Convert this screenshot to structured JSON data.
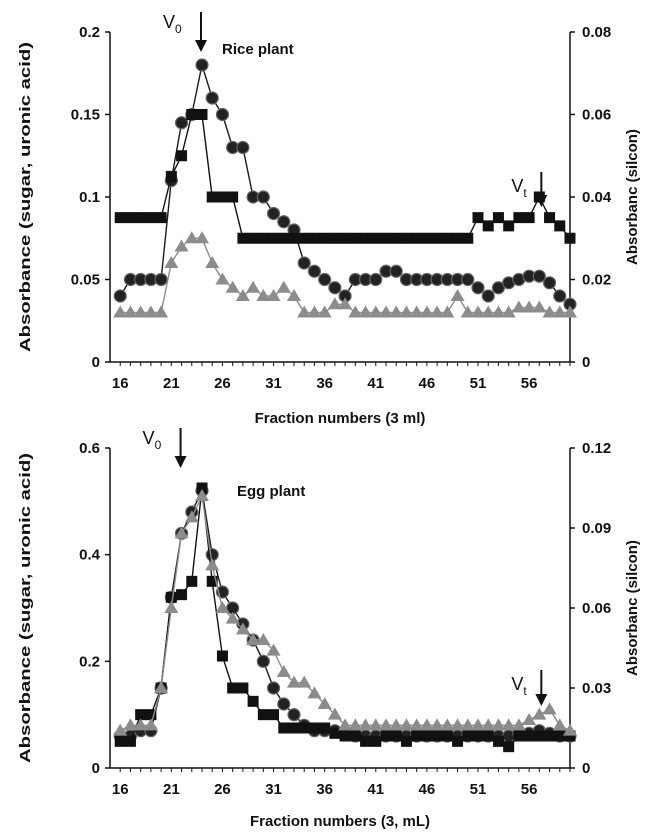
{
  "chart_data": [
    {
      "type": "line",
      "title": "Rice plant",
      "xlabel": "Fraction numbers (3 ml)",
      "ylabel": "Absorbance (sugar, uronic acid)",
      "y2label": "Absorbanc (silcon)",
      "xlim": [
        15,
        60
      ],
      "ylim": [
        0,
        0.2
      ],
      "y2lim": [
        0,
        0.08
      ],
      "xticks": [
        "16",
        "21",
        "26",
        "31",
        "36",
        "41",
        "46",
        "51",
        "56"
      ],
      "yticks": [
        "0",
        "0.05",
        "0.1",
        "0.15",
        "0.2"
      ],
      "y2ticks": [
        "0",
        "0.02",
        "0.04",
        "0.06",
        "0.08"
      ],
      "grid": false,
      "annotations": [
        {
          "label": "V",
          "sub": "0",
          "x": 24
        },
        {
          "label": "V",
          "sub": "t",
          "x": 57
        }
      ],
      "series": [
        {
          "marker": "circle",
          "axis": "left",
          "color": "#1a1a1a",
          "x": [
            16,
            17,
            18,
            19,
            20,
            21,
            22,
            23,
            24,
            25,
            26,
            27,
            28,
            29,
            30,
            31,
            32,
            33,
            34,
            35,
            36,
            37,
            38,
            39,
            40,
            41,
            42,
            43,
            44,
            45,
            46,
            47,
            48,
            49,
            50,
            51,
            52,
            53,
            54,
            55,
            56,
            57,
            58,
            59,
            60
          ],
          "y": [
            0.04,
            0.05,
            0.05,
            0.05,
            0.05,
            0.11,
            0.145,
            0.15,
            0.18,
            0.16,
            0.15,
            0.13,
            0.13,
            0.1,
            0.1,
            0.09,
            0.085,
            0.08,
            0.06,
            0.055,
            0.05,
            0.045,
            0.04,
            0.05,
            0.05,
            0.05,
            0.055,
            0.055,
            0.05,
            0.05,
            0.05,
            0.05,
            0.05,
            0.05,
            0.05,
            0.045,
            0.04,
            0.045,
            0.048,
            0.05,
            0.052,
            0.052,
            0.048,
            0.04,
            0.035
          ]
        },
        {
          "marker": "square",
          "axis": "right",
          "color": "#111111",
          "x": [
            16,
            17,
            18,
            19,
            20,
            21,
            22,
            23,
            24,
            25,
            26,
            27,
            28,
            29,
            30,
            31,
            32,
            33,
            34,
            35,
            36,
            37,
            38,
            39,
            40,
            41,
            42,
            43,
            44,
            45,
            46,
            47,
            48,
            49,
            50,
            51,
            52,
            53,
            54,
            55,
            56,
            57,
            58,
            59,
            60
          ],
          "y": [
            0.035,
            0.035,
            0.035,
            0.035,
            0.035,
            0.045,
            0.05,
            0.06,
            0.06,
            0.04,
            0.04,
            0.04,
            0.03,
            0.03,
            0.03,
            0.03,
            0.03,
            0.03,
            0.03,
            0.03,
            0.03,
            0.03,
            0.03,
            0.03,
            0.03,
            0.03,
            0.03,
            0.03,
            0.03,
            0.03,
            0.03,
            0.03,
            0.03,
            0.03,
            0.03,
            0.035,
            0.033,
            0.035,
            0.033,
            0.035,
            0.035,
            0.04,
            0.035,
            0.033,
            0.03
          ]
        },
        {
          "marker": "triangle",
          "axis": "left",
          "color": "#8c8c8c",
          "x": [
            16,
            17,
            18,
            19,
            20,
            21,
            22,
            23,
            24,
            25,
            26,
            27,
            28,
            29,
            30,
            31,
            32,
            33,
            34,
            35,
            36,
            37,
            38,
            39,
            40,
            41,
            42,
            43,
            44,
            45,
            46,
            47,
            48,
            49,
            50,
            51,
            52,
            53,
            54,
            55,
            56,
            57,
            58,
            59,
            60
          ],
          "y": [
            0.03,
            0.03,
            0.03,
            0.03,
            0.03,
            0.06,
            0.07,
            0.075,
            0.075,
            0.06,
            0.05,
            0.045,
            0.04,
            0.045,
            0.04,
            0.04,
            0.045,
            0.04,
            0.03,
            0.03,
            0.03,
            0.035,
            0.035,
            0.03,
            0.03,
            0.03,
            0.03,
            0.03,
            0.03,
            0.03,
            0.03,
            0.03,
            0.03,
            0.04,
            0.03,
            0.03,
            0.03,
            0.03,
            0.03,
            0.033,
            0.033,
            0.033,
            0.03,
            0.03,
            0.03
          ]
        }
      ]
    },
    {
      "type": "line",
      "title": "Egg plant",
      "xlabel": "Fraction numbers (3, mL)",
      "ylabel": "Absorbance (sugar, uronic acid)",
      "y2label": "Absorbanc (silcon)",
      "xlim": [
        15,
        60
      ],
      "ylim": [
        0,
        0.6
      ],
      "y2lim": [
        0,
        0.12
      ],
      "xticks": [
        "16",
        "21",
        "26",
        "31",
        "36",
        "41",
        "46",
        "51",
        "56"
      ],
      "yticks": [
        "0",
        "0.2",
        "0.4",
        "0.6"
      ],
      "y2ticks": [
        "0",
        "0.03",
        "0.06",
        "0.09",
        "0.12"
      ],
      "grid": false,
      "annotations": [
        {
          "label": "V",
          "sub": "0",
          "x": 22
        },
        {
          "label": "V",
          "sub": "t",
          "x": 57
        }
      ],
      "series": [
        {
          "marker": "circle",
          "axis": "left",
          "color": "#1a1a1a",
          "x": [
            16,
            17,
            18,
            19,
            20,
            21,
            22,
            23,
            24,
            25,
            26,
            27,
            28,
            29,
            30,
            31,
            32,
            33,
            34,
            35,
            36,
            37,
            38,
            39,
            40,
            41,
            42,
            43,
            44,
            45,
            46,
            47,
            48,
            49,
            50,
            51,
            52,
            53,
            54,
            55,
            56,
            57,
            58,
            59,
            60
          ],
          "y": [
            0.06,
            0.06,
            0.07,
            0.07,
            0.15,
            0.32,
            0.44,
            0.48,
            0.52,
            0.4,
            0.33,
            0.3,
            0.27,
            0.24,
            0.2,
            0.15,
            0.12,
            0.1,
            0.08,
            0.07,
            0.07,
            0.07,
            0.065,
            0.06,
            0.06,
            0.06,
            0.06,
            0.06,
            0.06,
            0.06,
            0.06,
            0.06,
            0.06,
            0.06,
            0.06,
            0.06,
            0.06,
            0.06,
            0.06,
            0.065,
            0.065,
            0.07,
            0.065,
            0.06,
            0.06
          ]
        },
        {
          "marker": "square",
          "axis": "right",
          "color": "#111111",
          "x": [
            16,
            17,
            18,
            19,
            20,
            21,
            22,
            23,
            24,
            25,
            26,
            27,
            28,
            29,
            30,
            31,
            32,
            33,
            34,
            35,
            36,
            37,
            38,
            39,
            40,
            41,
            42,
            43,
            44,
            45,
            46,
            47,
            48,
            49,
            50,
            51,
            52,
            53,
            54,
            55,
            56,
            57,
            58,
            59,
            60
          ],
          "y": [
            0.01,
            0.01,
            0.02,
            0.02,
            0.03,
            0.064,
            0.065,
            0.07,
            0.105,
            0.07,
            0.042,
            0.03,
            0.03,
            0.025,
            0.02,
            0.02,
            0.015,
            0.015,
            0.015,
            0.015,
            0.015,
            0.013,
            0.012,
            0.012,
            0.01,
            0.01,
            0.012,
            0.012,
            0.01,
            0.012,
            0.012,
            0.012,
            0.012,
            0.01,
            0.012,
            0.012,
            0.012,
            0.01,
            0.008,
            0.012,
            0.012,
            0.012,
            0.012,
            0.012,
            0.012
          ]
        },
        {
          "marker": "triangle",
          "axis": "left",
          "color": "#8c8c8c",
          "x": [
            16,
            17,
            18,
            19,
            20,
            21,
            22,
            23,
            24,
            25,
            26,
            27,
            28,
            29,
            30,
            31,
            32,
            33,
            34,
            35,
            36,
            37,
            38,
            39,
            40,
            41,
            42,
            43,
            44,
            45,
            46,
            47,
            48,
            49,
            50,
            51,
            52,
            53,
            54,
            55,
            56,
            57,
            58,
            59,
            60
          ],
          "y": [
            0.07,
            0.08,
            0.08,
            0.08,
            0.15,
            0.3,
            0.44,
            0.47,
            0.51,
            0.38,
            0.3,
            0.28,
            0.26,
            0.24,
            0.24,
            0.22,
            0.18,
            0.16,
            0.16,
            0.14,
            0.12,
            0.1,
            0.08,
            0.08,
            0.08,
            0.08,
            0.08,
            0.08,
            0.08,
            0.08,
            0.08,
            0.08,
            0.08,
            0.08,
            0.08,
            0.08,
            0.08,
            0.08,
            0.08,
            0.08,
            0.09,
            0.1,
            0.11,
            0.08,
            0.07
          ]
        }
      ]
    }
  ]
}
